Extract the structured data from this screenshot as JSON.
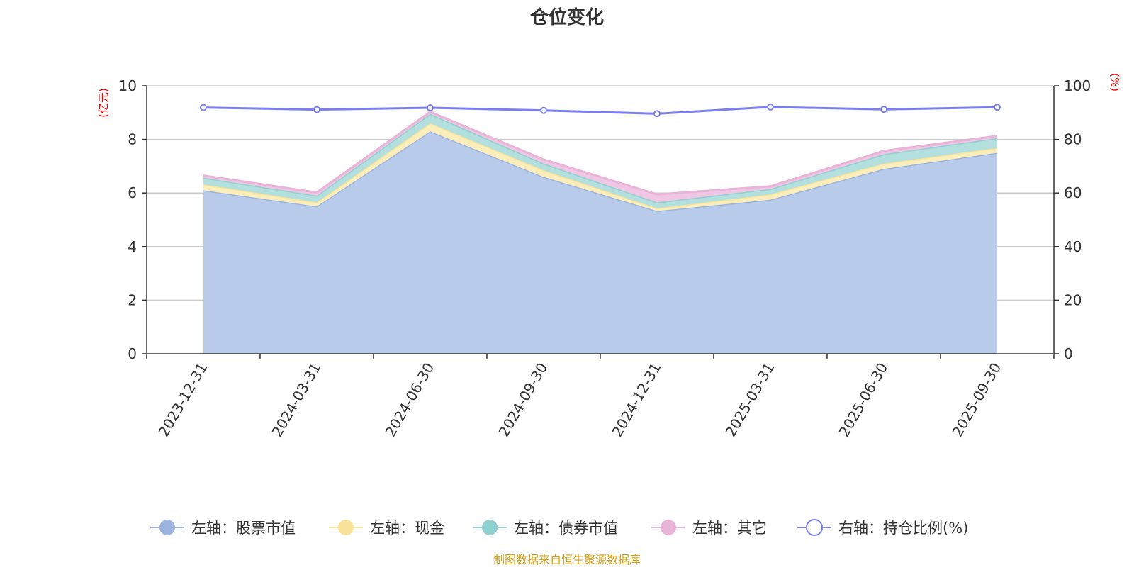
{
  "chart_data": {
    "type": "area",
    "title": "仓位变化",
    "categories": [
      "2023-12-31",
      "2024-03-31",
      "2024-06-30",
      "2024-09-30",
      "2024-12-31",
      "2025-03-31",
      "2025-06-30",
      "2025-09-30"
    ],
    "left_axis": {
      "unit": "(亿元)",
      "ylim": [
        0,
        10
      ],
      "ticks": [
        "0",
        "2",
        "4",
        "6",
        "8",
        "10"
      ]
    },
    "right_axis": {
      "unit": "(%)",
      "ylim": [
        0,
        100
      ],
      "ticks": [
        "0",
        "20",
        "40",
        "60",
        "80",
        "100"
      ]
    },
    "grid": true,
    "legend_position": "bottom",
    "series": [
      {
        "name": "左轴：股票市值",
        "axis": "left",
        "stacked": true,
        "color": "#9bb5e0",
        "fill": "#b9cbea",
        "values": [
          6.1,
          5.5,
          8.3,
          6.6,
          5.33,
          5.75,
          6.9,
          7.5
        ]
      },
      {
        "name": "左轴：现金",
        "axis": "left",
        "stacked": true,
        "color": "#f7e49a",
        "fill": "#fbeebb",
        "values": [
          0.22,
          0.15,
          0.3,
          0.25,
          0.1,
          0.2,
          0.2,
          0.18
        ]
      },
      {
        "name": "左轴：债券市值",
        "axis": "left",
        "stacked": true,
        "color": "#8fd0d0",
        "fill": "#b3dfde",
        "values": [
          0.25,
          0.25,
          0.35,
          0.25,
          0.22,
          0.2,
          0.35,
          0.37
        ]
      },
      {
        "name": "左轴：其它",
        "axis": "left",
        "stacked": true,
        "color": "#e8b4d8",
        "fill": "#efc6e3",
        "values": [
          0.08,
          0.12,
          0.08,
          0.15,
          0.3,
          0.1,
          0.12,
          0.08
        ]
      },
      {
        "name": "右轴：持仓比例(%)",
        "axis": "right",
        "type": "line",
        "color": "#7a7ff0",
        "values": [
          91.9,
          91.1,
          91.8,
          90.8,
          89.6,
          92.1,
          91.2,
          92.0
        ]
      }
    ]
  },
  "footer": {
    "source": "制图数据来自恒生聚源数据库"
  }
}
